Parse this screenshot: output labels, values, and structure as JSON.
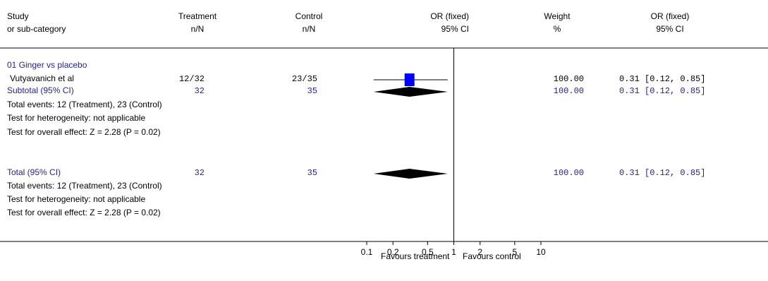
{
  "header": {
    "study_line1": "Study",
    "study_line2": "or sub-category",
    "treatment_line1": "Treatment",
    "treatment_line2": "n/N",
    "control_line1": "Control",
    "control_line2": "n/N",
    "or_line1": "OR (fixed)",
    "or_line2": "95% CI",
    "weight_line1": "Weight",
    "weight_line2": "%",
    "orci_line1": "OR (fixed)",
    "orci_line2": "95% CI"
  },
  "group": {
    "title": "01 Ginger vs placebo",
    "study": {
      "name": "Vutyavanich et al",
      "treatment": "12/32",
      "control": "23/35",
      "weight": "100.00",
      "ci": "0.31 [0.12, 0.85]"
    },
    "subtotal": {
      "label": "Subtotal (95% CI)",
      "treatment": "32",
      "control": "35",
      "weight": "100.00",
      "ci": "0.31 [0.12, 0.85]"
    },
    "events": "Total events: 12 (Treatment), 23 (Control)",
    "heterogeneity": "Test for heterogeneity: not applicable",
    "overall": "Test for overall effect: Z = 2.28 (P = 0.02)"
  },
  "total": {
    "label": "Total (95% CI)",
    "treatment": "32",
    "control": "35",
    "weight": "100.00",
    "ci": "0.31 [0.12, 0.85]",
    "events": "Total events: 12 (Treatment), 23 (Control)",
    "heterogeneity": "Test for heterogeneity: not applicable",
    "overall": "Test for overall effect: Z = 2.28 (P = 0.02)"
  },
  "axis": {
    "favours_left": "Favours treatment",
    "favours_right": "Favours control"
  },
  "colors": {
    "blue_text": "#1f1f9c",
    "study_marker": "#0000ff",
    "diamond": "#000000"
  },
  "chart_data": {
    "type": "forest",
    "scale": "log",
    "xlim": [
      0.1,
      10
    ],
    "ticks": [
      0.1,
      0.2,
      0.5,
      1,
      2,
      5,
      10
    ],
    "tick_labels": [
      "0.1",
      "0.2",
      "0.5",
      "1",
      "2",
      "5",
      "10"
    ],
    "null_line": 1,
    "studies": [
      {
        "name": "Vutyavanich et al",
        "or": 0.31,
        "lower": 0.12,
        "upper": 0.85,
        "weight": 100.0
      }
    ],
    "pooled": [
      {
        "name": "Subtotal (95% CI)",
        "or": 0.31,
        "lower": 0.12,
        "upper": 0.85
      },
      {
        "name": "Total (95% CI)",
        "or": 0.31,
        "lower": 0.12,
        "upper": 0.85
      }
    ]
  }
}
